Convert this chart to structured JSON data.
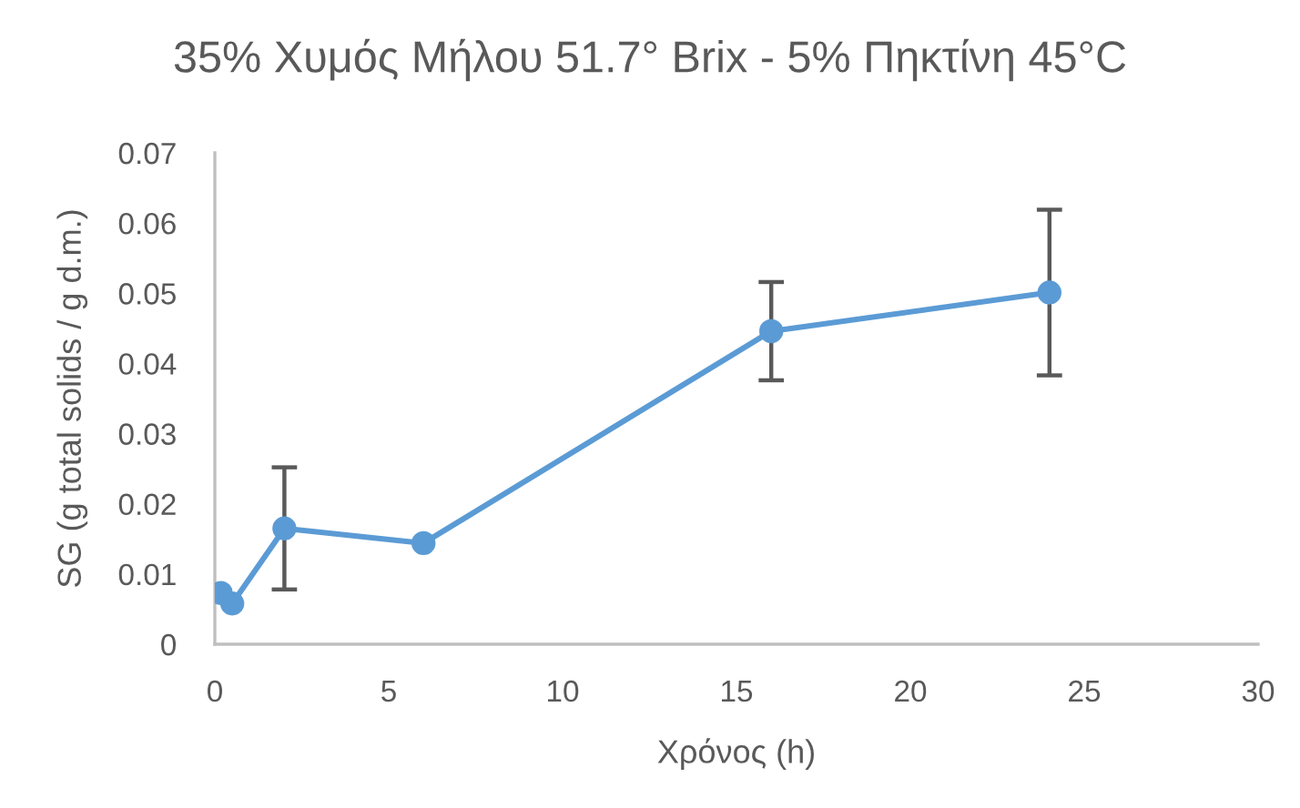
{
  "chart_data": {
    "type": "line",
    "title": "35% Χυμός Μήλου 51.7° Brix - 5% Πηκτίνη 45°C",
    "xlabel": "Χρόνος (h)",
    "ylabel": "SG (g total solids / g d.m.)",
    "x": [
      0.17,
      0.5,
      2,
      6,
      16,
      24
    ],
    "series": [
      {
        "color": "#5b9bd5",
        "values": [
          0.0073,
          0.0058,
          0.0165,
          0.0144,
          0.0446,
          0.0501
        ],
        "errors": [
          null,
          null,
          0.0087,
          null,
          0.007,
          0.0118
        ]
      }
    ],
    "xlim": [
      0,
      30
    ],
    "ylim": [
      0,
      0.07
    ],
    "xticks": [
      0,
      5,
      10,
      15,
      20,
      25,
      30
    ],
    "yticks": [
      0,
      0.01,
      0.02,
      0.03,
      0.04,
      0.05,
      0.06,
      0.07
    ],
    "grid": false,
    "marker": "circle",
    "line_style": "solid"
  }
}
